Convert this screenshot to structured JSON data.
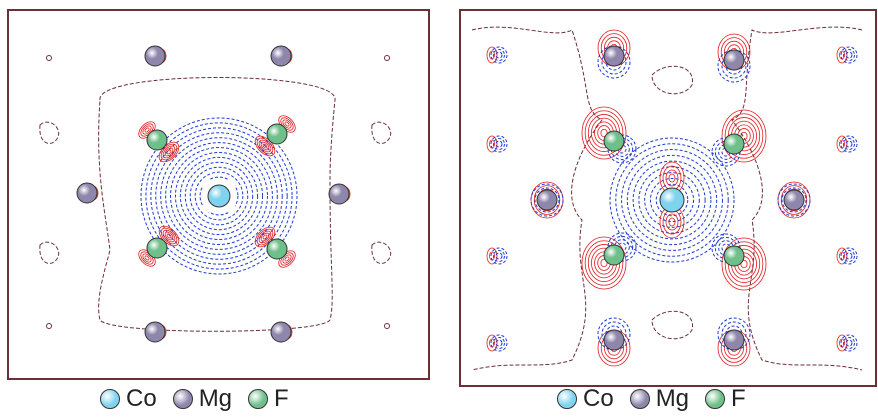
{
  "colors": {
    "frame": "#6b2f36",
    "positive_contour": "#e31a1c",
    "negative_contour": "#1f3bd1",
    "zero_contour": "#6b2f36"
  },
  "species": [
    {
      "name": "Co",
      "color": "#7fd3ee",
      "icon": "co-atom-icon"
    },
    {
      "name": "Mg",
      "color": "#8e86ab",
      "icon": "mg-atom-icon"
    },
    {
      "name": "F",
      "color": "#6fbf8a",
      "icon": "f-atom-icon"
    }
  ],
  "panels": [
    {
      "id": "left",
      "legend": [
        "Co",
        "Mg",
        "F"
      ]
    },
    {
      "id": "right",
      "legend": [
        "Co",
        "Mg",
        "F"
      ]
    }
  ]
}
